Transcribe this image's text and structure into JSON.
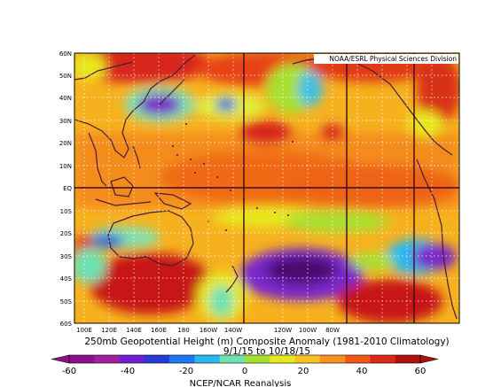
{
  "map": {
    "credit": "NOAA/ESRL Physical Sciences Division",
    "lat_labels": [
      "60N",
      "50N",
      "40N",
      "30N",
      "20N",
      "10N",
      "EQ",
      "10S",
      "20S",
      "30S",
      "40S",
      "50S",
      "60S"
    ],
    "lon_labels": [
      "100E",
      "120E",
      "140E",
      "160E",
      "180",
      "160W",
      "140W",
      "120W",
      "100W",
      "80W"
    ],
    "title": "250mb Geopotential Height (m) Composite Anomaly (1981-2010 Climatology)",
    "dates": "9/1/15  to 10/18/15",
    "source": "NCEP/NCAR Reanalysis",
    "colorbar": {
      "min": -60,
      "max": 60,
      "step": 10,
      "tick_labels": [
        "-60",
        "-40",
        "-20",
        "0",
        "20",
        "40",
        "60"
      ],
      "colors": [
        "#8c0f8c",
        "#a020a0",
        "#7020d0",
        "#2a3ad8",
        "#1e78f0",
        "#28b8f0",
        "#70e0b0",
        "#a8e030",
        "#e8e81e",
        "#f8c020",
        "#f89020",
        "#f05818",
        "#e02818",
        "#b01010"
      ]
    }
  }
}
